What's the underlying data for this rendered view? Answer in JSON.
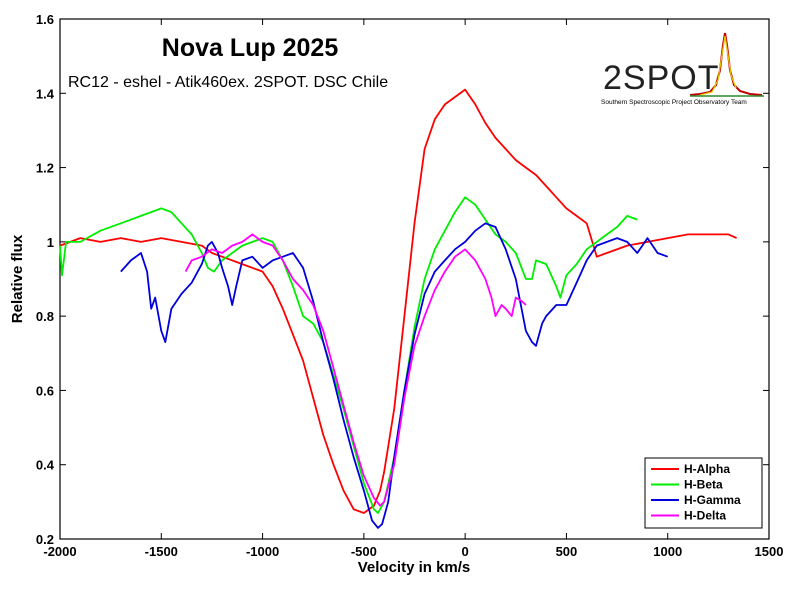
{
  "chart_data": {
    "type": "line",
    "title": "Nova Lup 2025",
    "subtitle": "RC12 - eshel - Atik460ex. 2SPOT. DSC Chile",
    "xlabel": "Velocity in km/s",
    "ylabel": "Relative flux",
    "xlim": [
      -2000,
      1500
    ],
    "ylim": [
      0.2,
      1.6
    ],
    "xticks": [
      -2000,
      -1500,
      -1000,
      -500,
      0,
      500,
      1000,
      1500
    ],
    "xtick_labels": [
      "-2000",
      "-1500",
      "-1000",
      "-500",
      "0",
      "500",
      "1000",
      "1500"
    ],
    "yticks": [
      0.2,
      0.4,
      0.6,
      0.8,
      1.0,
      1.2,
      1.4,
      1.6
    ],
    "ytick_labels": [
      "0.2",
      "0.4",
      "0.6",
      "0.8",
      "1",
      "1.2",
      "1.4",
      "1.6"
    ],
    "grid": false,
    "legend_position": "bottom-right",
    "logo": {
      "text": "2SPOT",
      "tagline": "Southern Spectroscopic Project Observatory Team"
    },
    "series": [
      {
        "name": "H-Alpha",
        "color": "#ff0000",
        "x": [
          -2000,
          -1900,
          -1800,
          -1700,
          -1600,
          -1500,
          -1400,
          -1300,
          -1250,
          -1200,
          -1100,
          -1000,
          -950,
          -900,
          -850,
          -800,
          -750,
          -700,
          -650,
          -600,
          -550,
          -500,
          -450,
          -420,
          -400,
          -350,
          -300,
          -250,
          -200,
          -150,
          -100,
          -50,
          0,
          50,
          100,
          150,
          200,
          250,
          300,
          350,
          400,
          450,
          500,
          550,
          600,
          650,
          700,
          800,
          900,
          1000,
          1100,
          1200,
          1300,
          1340
        ],
        "y": [
          0.99,
          1.01,
          1.0,
          1.01,
          1.0,
          1.01,
          1.0,
          0.99,
          0.97,
          0.96,
          0.94,
          0.92,
          0.88,
          0.82,
          0.75,
          0.68,
          0.58,
          0.48,
          0.4,
          0.33,
          0.28,
          0.27,
          0.29,
          0.33,
          0.38,
          0.55,
          0.8,
          1.05,
          1.25,
          1.33,
          1.37,
          1.39,
          1.41,
          1.37,
          1.32,
          1.28,
          1.25,
          1.22,
          1.2,
          1.18,
          1.15,
          1.12,
          1.09,
          1.07,
          1.05,
          0.96,
          0.97,
          0.99,
          1.0,
          1.01,
          1.02,
          1.02,
          1.02,
          1.01
        ]
      },
      {
        "name": "H-Beta",
        "color": "#00ee00",
        "x": [
          -2000,
          -1990,
          -1970,
          -1900,
          -1800,
          -1700,
          -1600,
          -1500,
          -1450,
          -1400,
          -1350,
          -1300,
          -1270,
          -1240,
          -1200,
          -1150,
          -1100,
          -1050,
          -1000,
          -950,
          -900,
          -850,
          -800,
          -750,
          -700,
          -650,
          -600,
          -550,
          -500,
          -450,
          -430,
          -400,
          -350,
          -300,
          -250,
          -200,
          -150,
          -100,
          -50,
          0,
          50,
          100,
          150,
          200,
          250,
          300,
          330,
          350,
          400,
          450,
          470,
          500,
          550,
          600,
          650,
          700,
          750,
          800,
          850
        ],
        "y": [
          0.99,
          0.91,
          1.0,
          1.0,
          1.03,
          1.05,
          1.07,
          1.09,
          1.08,
          1.05,
          1.02,
          0.97,
          0.93,
          0.92,
          0.95,
          0.97,
          0.99,
          1.0,
          1.01,
          1.0,
          0.95,
          0.88,
          0.8,
          0.78,
          0.73,
          0.64,
          0.55,
          0.45,
          0.35,
          0.28,
          0.27,
          0.3,
          0.42,
          0.6,
          0.77,
          0.9,
          0.98,
          1.03,
          1.08,
          1.12,
          1.1,
          1.06,
          1.02,
          1.0,
          0.97,
          0.9,
          0.9,
          0.95,
          0.94,
          0.88,
          0.85,
          0.91,
          0.94,
          0.98,
          1.0,
          1.02,
          1.04,
          1.07,
          1.06
        ]
      },
      {
        "name": "H-Gamma",
        "color": "#0000dd",
        "x": [
          -1700,
          -1650,
          -1600,
          -1570,
          -1550,
          -1530,
          -1500,
          -1480,
          -1450,
          -1400,
          -1350,
          -1300,
          -1270,
          -1250,
          -1220,
          -1200,
          -1170,
          -1150,
          -1130,
          -1100,
          -1050,
          -1000,
          -950,
          -900,
          -850,
          -800,
          -750,
          -700,
          -650,
          -600,
          -550,
          -500,
          -460,
          -430,
          -410,
          -380,
          -350,
          -300,
          -250,
          -200,
          -150,
          -100,
          -50,
          0,
          50,
          100,
          150,
          200,
          250,
          300,
          330,
          350,
          380,
          400,
          450,
          500,
          550,
          600,
          650,
          700,
          750,
          800,
          850,
          900,
          950,
          1000
        ],
        "y": [
          0.92,
          0.95,
          0.97,
          0.92,
          0.82,
          0.85,
          0.76,
          0.73,
          0.82,
          0.86,
          0.89,
          0.94,
          0.99,
          1.0,
          0.97,
          0.93,
          0.88,
          0.83,
          0.88,
          0.95,
          0.96,
          0.93,
          0.95,
          0.96,
          0.97,
          0.93,
          0.84,
          0.73,
          0.63,
          0.52,
          0.42,
          0.33,
          0.25,
          0.23,
          0.24,
          0.3,
          0.42,
          0.6,
          0.75,
          0.86,
          0.92,
          0.95,
          0.98,
          1.0,
          1.03,
          1.05,
          1.04,
          0.98,
          0.9,
          0.76,
          0.73,
          0.72,
          0.78,
          0.8,
          0.83,
          0.83,
          0.89,
          0.95,
          0.99,
          1.0,
          1.01,
          1.0,
          0.97,
          1.01,
          0.97,
          0.96
        ]
      },
      {
        "name": "H-Delta",
        "color": "#ff00ff",
        "x": [
          -1380,
          -1350,
          -1300,
          -1250,
          -1200,
          -1150,
          -1100,
          -1050,
          -1000,
          -950,
          -900,
          -850,
          -800,
          -750,
          -700,
          -650,
          -600,
          -550,
          -500,
          -450,
          -420,
          -400,
          -350,
          -300,
          -250,
          -200,
          -150,
          -100,
          -50,
          0,
          50,
          100,
          130,
          150,
          180,
          200,
          230,
          250,
          280,
          300
        ],
        "y": [
          0.92,
          0.95,
          0.96,
          0.98,
          0.97,
          0.99,
          1.0,
          1.02,
          1.0,
          0.99,
          0.95,
          0.9,
          0.87,
          0.83,
          0.76,
          0.66,
          0.56,
          0.46,
          0.37,
          0.31,
          0.29,
          0.3,
          0.4,
          0.58,
          0.72,
          0.8,
          0.87,
          0.92,
          0.96,
          0.98,
          0.95,
          0.9,
          0.85,
          0.8,
          0.83,
          0.82,
          0.8,
          0.85,
          0.84,
          0.83
        ]
      }
    ]
  }
}
